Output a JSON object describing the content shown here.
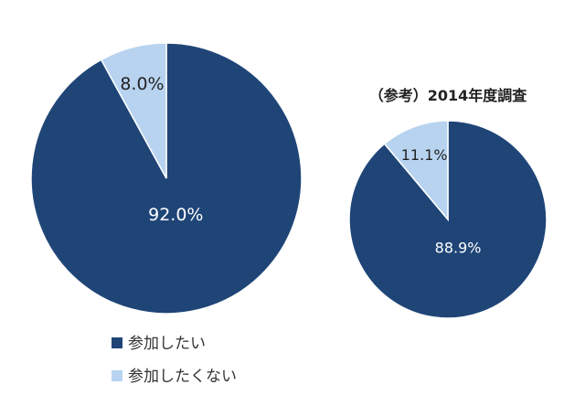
{
  "chart_data": [
    {
      "type": "pie",
      "title": "",
      "categories": [
        "参加したい",
        "参加したくない"
      ],
      "values": [
        92.0,
        8.0
      ],
      "labels": [
        "92.0%",
        "8.0%"
      ]
    },
    {
      "type": "pie",
      "title": "（参考）2014年度調査",
      "categories": [
        "参加したい",
        "参加したくない"
      ],
      "values": [
        88.9,
        11.1
      ],
      "labels": [
        "88.9%",
        "11.1%"
      ]
    }
  ],
  "legend": {
    "items": [
      {
        "label": "参加したい",
        "color": "#1f4577"
      },
      {
        "label": "参加したくない",
        "color": "#b7d3f0"
      }
    ],
    "placement": "bottom-left"
  },
  "colors": {
    "dark": "#1f4577",
    "light": "#b7d3f0",
    "border": "#ffffff"
  }
}
